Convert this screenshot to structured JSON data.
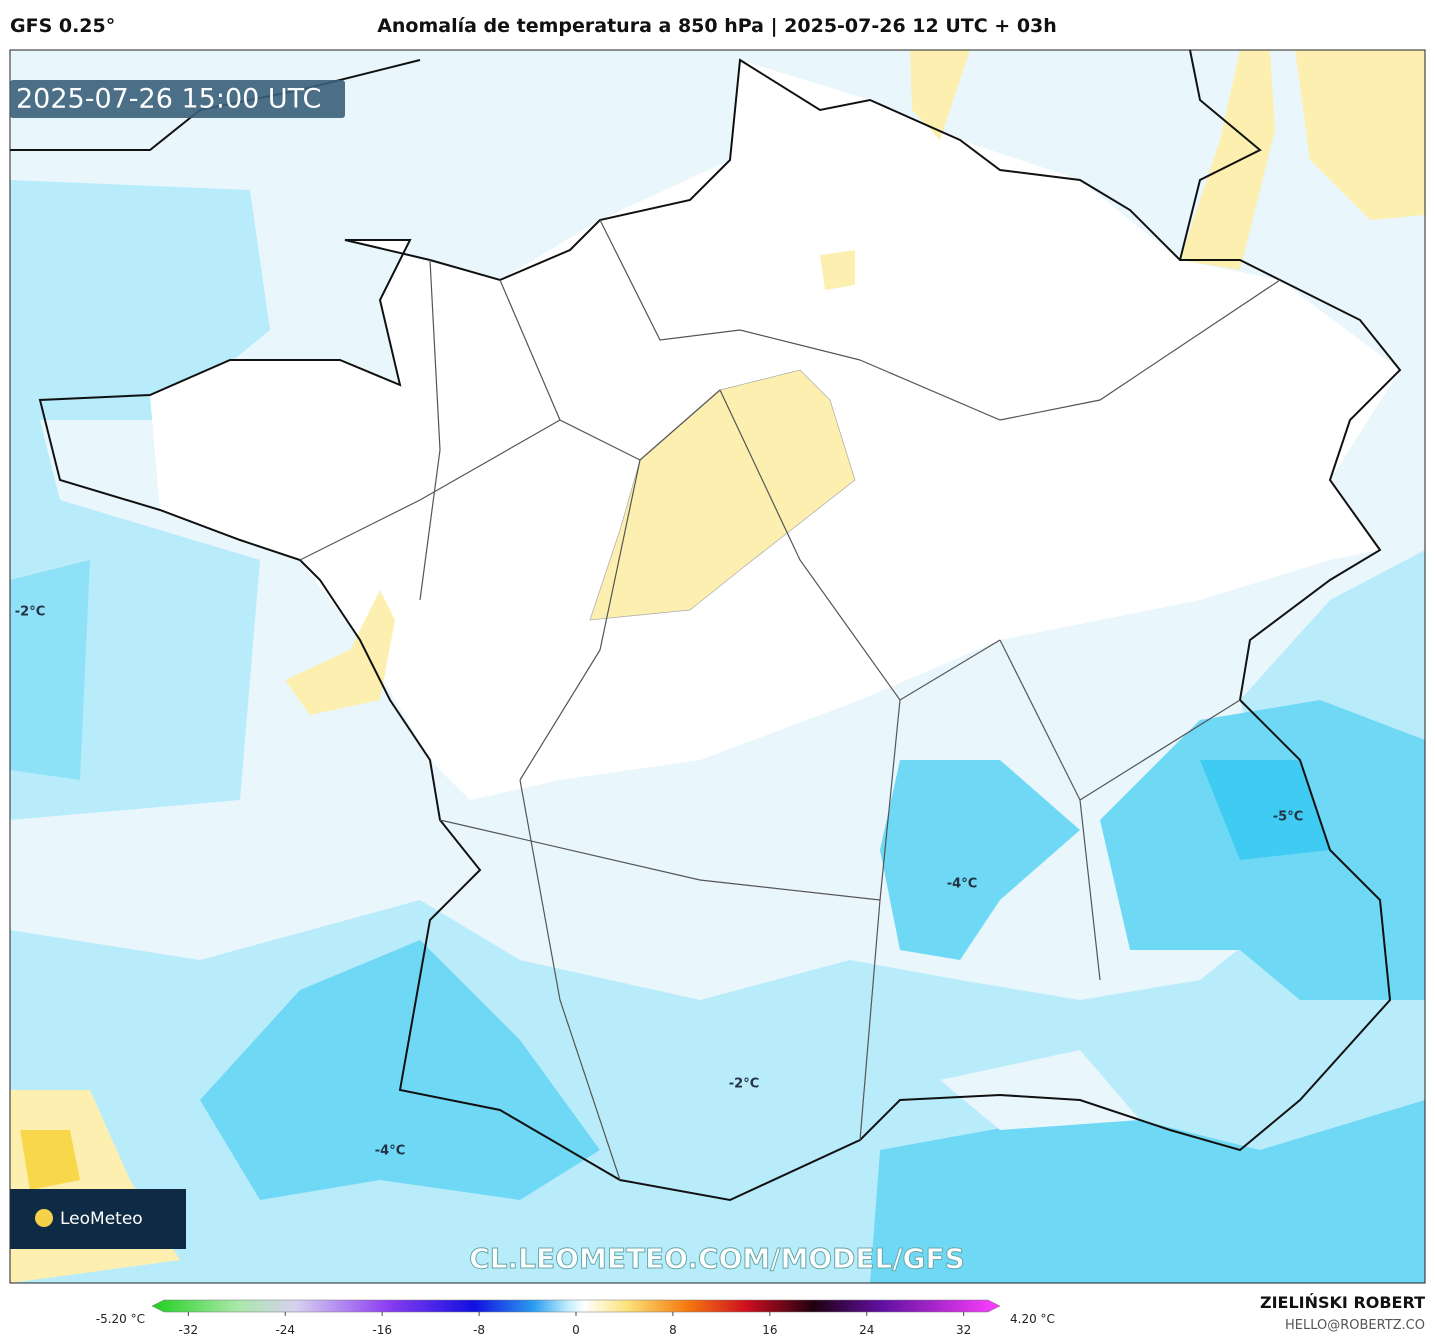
{
  "header": {
    "model": "GFS 0.25°",
    "title": "Anomalía de temperatura a 850 hPa | 2025-07-26 12 UTC + 03h"
  },
  "map": {
    "valid_time": "2025-07-26 15:00 UTC",
    "watermark": "CL.LEOMETEO.COM/MODEL/GFS",
    "logo": "LeoMeteo",
    "contour_labels": [
      "-2°C",
      "-4°C",
      "-5°C",
      "-2°C",
      "-4°C"
    ]
  },
  "colorbar": {
    "min_label": "-5.20 °C",
    "max_label": "4.20 °C",
    "range": [
      -35,
      35
    ],
    "ticks": [
      -32,
      -24,
      -16,
      -8,
      0,
      8,
      16,
      24,
      32
    ]
  },
  "footer": {
    "author": "ZIELIŃSKI ROBERT",
    "email": "HELLO@ROBERTZ.CO"
  }
}
